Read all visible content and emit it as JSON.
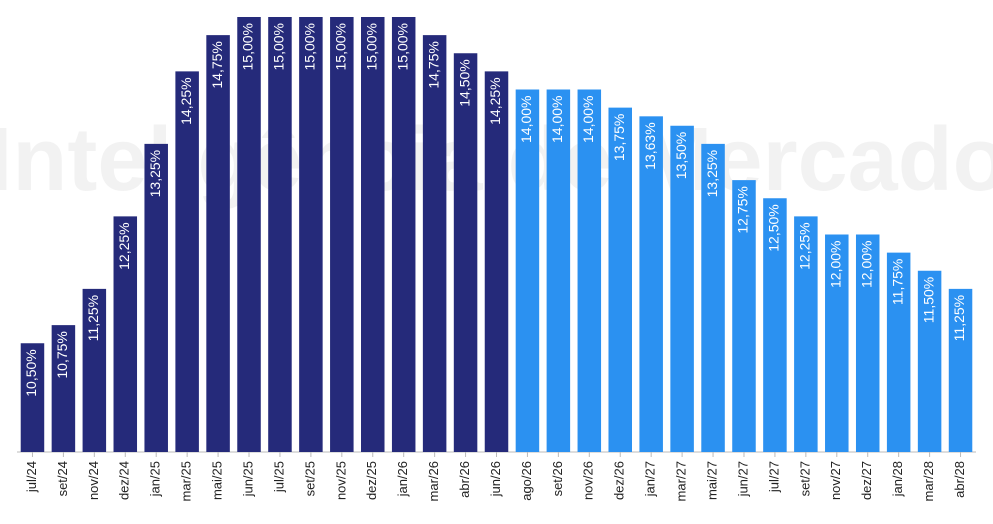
{
  "chart_data": {
    "type": "bar",
    "watermark": "StoneX Inteligência de Mercado",
    "categories": [
      "jul/24",
      "set/24",
      "nov/24",
      "dez/24",
      "jan/25",
      "mar/25",
      "mai/25",
      "jun/25",
      "jul/25",
      "set/25",
      "nov/25",
      "dez/25",
      "jan/26",
      "mar/26",
      "abr/26",
      "jun/26",
      "ago/26",
      "set/26",
      "nov/26",
      "dez/26",
      "jan/27",
      "mar/27",
      "mai/27",
      "jun/27",
      "jul/27",
      "set/27",
      "nov/27",
      "dez/27",
      "jan/28",
      "mar/28",
      "abr/28"
    ],
    "values": [
      10.5,
      10.75,
      11.25,
      12.25,
      13.25,
      14.25,
      14.75,
      15,
      15,
      15,
      15,
      15,
      15,
      14.75,
      14.5,
      14.25,
      14,
      14,
      14,
      13.75,
      13.63,
      13.5,
      13.25,
      12.75,
      12.5,
      12.25,
      12,
      12,
      11.75,
      11.5,
      11.25
    ],
    "value_labels": [
      "10,50%",
      "10,75%",
      "11,25%",
      "12,25%",
      "13,25%",
      "14,25%",
      "14,75%",
      "15,00%",
      "15,00%",
      "15,00%",
      "15,00%",
      "15,00%",
      "15,00%",
      "14,75%",
      "14,50%",
      "14,25%",
      "14,00%",
      "14,00%",
      "14,00%",
      "13,75%",
      "13,63%",
      "13,50%",
      "13,25%",
      "12,75%",
      "12,50%",
      "12,25%",
      "12,00%",
      "12,00%",
      "11,75%",
      "11,50%",
      "11,25%"
    ],
    "colors": [
      "#252a7a",
      "#252a7a",
      "#252a7a",
      "#252a7a",
      "#252a7a",
      "#252a7a",
      "#252a7a",
      "#252a7a",
      "#252a7a",
      "#252a7a",
      "#252a7a",
      "#252a7a",
      "#252a7a",
      "#252a7a",
      "#252a7a",
      "#252a7a",
      "#2b91f1",
      "#2b91f1",
      "#2b91f1",
      "#2b91f1",
      "#2b91f1",
      "#2b91f1",
      "#2b91f1",
      "#2b91f1",
      "#2b91f1",
      "#2b91f1",
      "#2b91f1",
      "#2b91f1",
      "#2b91f1",
      "#2b91f1",
      "#2b91f1"
    ],
    "ylim": [
      9,
      15
    ]
  }
}
